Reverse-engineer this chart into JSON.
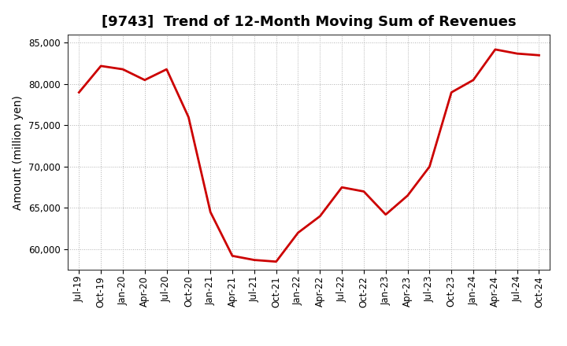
{
  "title": "[9743]  Trend of 12-Month Moving Sum of Revenues",
  "ylabel": "Amount (million yen)",
  "line_color": "#cc0000",
  "line_width": 2.0,
  "background_color": "#ffffff",
  "grid_color": "#b0b0b0",
  "ylim": [
    57500,
    86000
  ],
  "yticks": [
    60000,
    65000,
    70000,
    75000,
    80000,
    85000
  ],
  "values": [
    79000,
    82200,
    81800,
    80500,
    81800,
    76000,
    64500,
    59200,
    58700,
    58500,
    62000,
    64000,
    67500,
    67000,
    64200,
    66500,
    70000,
    79000,
    80500,
    84200,
    83700,
    83500
  ],
  "xtick_labels": [
    "Jul-19",
    "Oct-19",
    "Jan-20",
    "Apr-20",
    "Jul-20",
    "Oct-20",
    "Jan-21",
    "Apr-21",
    "Jul-21",
    "Oct-21",
    "Jan-22",
    "Apr-22",
    "Jul-22",
    "Oct-22",
    "Jan-23",
    "Apr-23",
    "Jul-23",
    "Oct-23",
    "Jan-24",
    "Apr-24",
    "Jul-24",
    "Oct-24"
  ],
  "title_fontsize": 13,
  "ylabel_fontsize": 10,
  "tick_fontsize": 8.5
}
